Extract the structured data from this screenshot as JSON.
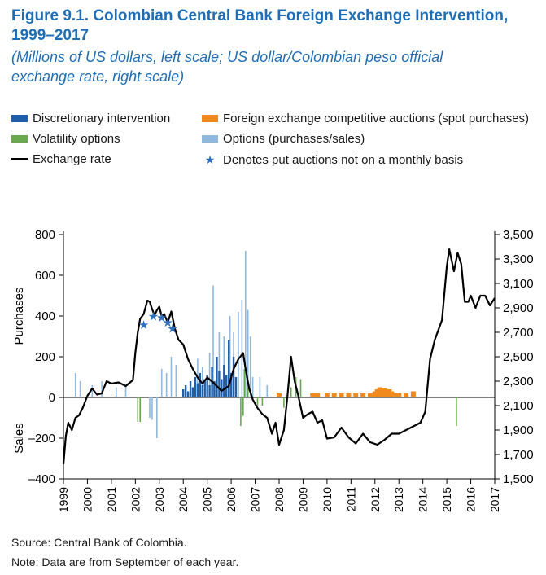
{
  "title_line1": "Figure 9.1. Colombian Central Bank Foreign Exchange Intervention,",
  "title_line2": "1999–2017",
  "subtitle_line1": "(Millions of US dollars, left scale; US dollar/Colombian peso official",
  "subtitle_line2": "exchange rate, right scale)",
  "legend": [
    {
      "label": "Discretionary intervention",
      "color": "#1f5fa8",
      "kind": "swatch"
    },
    {
      "label": "Foreign exchange competitive auctions (spot purchases)",
      "color": "#f08a1c",
      "kind": "swatch"
    },
    {
      "label": "Volatility options",
      "color": "#6aa84f",
      "kind": "swatch"
    },
    {
      "label": "Options (purchases/sales)",
      "color": "#8fb8de",
      "kind": "swatch"
    },
    {
      "label": "Exchange rate",
      "color": "#000000",
      "kind": "line"
    },
    {
      "label": "Denotes put auctions not on a monthly basis",
      "color": "#2e6fbe",
      "kind": "star"
    }
  ],
  "source": "Source: Central Bank of Colombia.",
  "note": "Note: Data are from September of each year.",
  "chart_data": {
    "type": "bar+line",
    "left_axis": {
      "label_top": "Purchases",
      "label_bottom": "Sales",
      "range": [
        -400,
        800
      ],
      "ticks": [
        -400,
        -200,
        0,
        200,
        400,
        600,
        800
      ],
      "tick_labels": [
        "–400",
        "–200",
        "0",
        "200",
        "400",
        "600",
        "800"
      ]
    },
    "right_axis": {
      "range": [
        1500,
        3500
      ],
      "ticks": [
        1500,
        1700,
        1900,
        2100,
        2300,
        2500,
        2700,
        2900,
        3100,
        3300,
        3500
      ],
      "tick_labels": [
        "1,500",
        "1,700",
        "1,900",
        "2,100",
        "2,300",
        "2,500",
        "2,700",
        "2,900",
        "3,100",
        "3,300",
        "3,500"
      ]
    },
    "x_axis": {
      "range": [
        1999,
        2017
      ],
      "ticks": [
        "1999",
        "2000",
        "2001",
        "2002",
        "2003",
        "2004",
        "2005",
        "2006",
        "2007",
        "2008",
        "2009",
        "2010",
        "2011",
        "2012",
        "2013",
        "2014",
        "2015",
        "2016",
        "2017"
      ]
    },
    "exchange_rate": {
      "x": [
        1999.0,
        1999.1,
        1999.2,
        1999.35,
        1999.5,
        1999.65,
        1999.8,
        2000.0,
        2000.2,
        2000.4,
        2000.6,
        2000.8,
        2001.0,
        2001.3,
        2001.6,
        2001.9,
        2002.0,
        2002.1,
        2002.2,
        2002.35,
        2002.5,
        2002.6,
        2002.7,
        2002.8,
        2002.9,
        2003.0,
        2003.1,
        2003.2,
        2003.35,
        2003.5,
        2003.65,
        2003.8,
        2004.0,
        2004.2,
        2004.4,
        2004.6,
        2004.8,
        2005.0,
        2005.3,
        2005.6,
        2005.9,
        2006.1,
        2006.3,
        2006.5,
        2006.6,
        2006.75,
        2006.9,
        2007.1,
        2007.3,
        2007.5,
        2007.7,
        2007.85,
        2008.0,
        2008.2,
        2008.35,
        2008.5,
        2008.65,
        2008.8,
        2009.0,
        2009.2,
        2009.4,
        2009.6,
        2009.8,
        2010.0,
        2010.3,
        2010.6,
        2010.9,
        2011.2,
        2011.5,
        2011.8,
        2012.1,
        2012.4,
        2012.7,
        2013.0,
        2013.3,
        2013.6,
        2013.9,
        2014.1,
        2014.3,
        2014.5,
        2014.65,
        2014.8,
        2015.0,
        2015.1,
        2015.2,
        2015.3,
        2015.45,
        2015.6,
        2015.75,
        2015.9,
        2016.0,
        2016.2,
        2016.4,
        2016.6,
        2016.8,
        2017.0
      ],
      "y": [
        1620,
        1850,
        1960,
        1900,
        2000,
        2020,
        2080,
        2180,
        2240,
        2190,
        2200,
        2300,
        2280,
        2290,
        2260,
        2310,
        2530,
        2700,
        2810,
        2850,
        2960,
        2950,
        2890,
        2840,
        2880,
        2910,
        2830,
        2850,
        2780,
        2870,
        2730,
        2640,
        2600,
        2480,
        2400,
        2330,
        2280,
        2330,
        2280,
        2220,
        2260,
        2400,
        2480,
        2530,
        2400,
        2240,
        2150,
        2080,
        2030,
        2000,
        1870,
        1960,
        1780,
        1900,
        2180,
        2500,
        2300,
        2180,
        2000,
        2030,
        2050,
        1960,
        1980,
        1830,
        1840,
        1920,
        1840,
        1790,
        1870,
        1800,
        1780,
        1820,
        1870,
        1870,
        1900,
        1930,
        1960,
        2050,
        2480,
        2640,
        2720,
        2800,
        3240,
        3380,
        3290,
        3200,
        3350,
        3260,
        2950,
        2950,
        3000,
        2900,
        3000,
        3000,
        2920,
        2980
      ]
    },
    "bars": {
      "discretionary": [
        [
          2004.0,
          40
        ],
        [
          2004.1,
          60
        ],
        [
          2004.2,
          30
        ],
        [
          2004.3,
          80
        ],
        [
          2004.4,
          50
        ],
        [
          2004.5,
          100
        ],
        [
          2004.6,
          70
        ],
        [
          2004.7,
          120
        ],
        [
          2004.8,
          60
        ],
        [
          2004.9,
          90
        ],
        [
          2005.0,
          110
        ],
        [
          2005.1,
          60
        ],
        [
          2005.2,
          150
        ],
        [
          2005.3,
          80
        ],
        [
          2005.4,
          200
        ],
        [
          2005.5,
          130
        ],
        [
          2005.6,
          90
        ],
        [
          2005.7,
          160
        ],
        [
          2005.8,
          110
        ],
        [
          2005.9,
          280
        ],
        [
          2006.0,
          120
        ],
        [
          2006.1,
          200
        ],
        [
          2006.2,
          100
        ]
      ],
      "auctions": [
        [
          2008.0,
          20
        ],
        [
          2009.4,
          20
        ],
        [
          2009.6,
          20
        ],
        [
          2010.0,
          20
        ],
        [
          2010.3,
          20
        ],
        [
          2010.6,
          20
        ],
        [
          2010.9,
          20
        ],
        [
          2011.2,
          20
        ],
        [
          2011.5,
          20
        ],
        [
          2011.8,
          20
        ],
        [
          2012.0,
          30
        ],
        [
          2012.1,
          40
        ],
        [
          2012.2,
          50
        ],
        [
          2012.3,
          40
        ],
        [
          2012.4,
          45
        ],
        [
          2012.5,
          35
        ],
        [
          2012.6,
          40
        ],
        [
          2012.7,
          30
        ],
        [
          2012.8,
          20
        ],
        [
          2012.9,
          20
        ],
        [
          2013.0,
          20
        ],
        [
          2013.3,
          20
        ],
        [
          2013.6,
          30
        ]
      ],
      "volatility": [
        [
          2002.1,
          -120
        ],
        [
          2002.2,
          -120
        ],
        [
          2006.4,
          -140
        ],
        [
          2006.5,
          -90
        ],
        [
          2006.55,
          140
        ],
        [
          2006.7,
          50
        ],
        [
          2007.1,
          -40
        ],
        [
          2007.3,
          -40
        ],
        [
          2008.2,
          -50
        ],
        [
          2008.3,
          -40
        ],
        [
          2008.5,
          50
        ],
        [
          2008.7,
          100
        ],
        [
          2008.9,
          90
        ],
        [
          2015.4,
          -140
        ]
      ],
      "options": [
        [
          1999.5,
          120
        ],
        [
          1999.7,
          80
        ],
        [
          2000.2,
          60
        ],
        [
          2000.6,
          80
        ],
        [
          2001.2,
          50
        ],
        [
          2001.6,
          60
        ],
        [
          2002.6,
          -100
        ],
        [
          2002.7,
          -110
        ],
        [
          2002.9,
          -200
        ],
        [
          2003.1,
          140
        ],
        [
          2003.3,
          120
        ],
        [
          2003.5,
          200
        ],
        [
          2003.7,
          160
        ],
        [
          2004.6,
          190
        ],
        [
          2004.8,
          150
        ],
        [
          2005.1,
          220
        ],
        [
          2005.25,
          550
        ],
        [
          2005.5,
          320
        ],
        [
          2005.7,
          300
        ],
        [
          2005.95,
          400
        ],
        [
          2006.1,
          320
        ],
        [
          2006.3,
          420
        ],
        [
          2006.45,
          480
        ],
        [
          2006.6,
          720
        ],
        [
          2006.7,
          430
        ],
        [
          2006.8,
          300
        ],
        [
          2006.9,
          100
        ],
        [
          2007.2,
          100
        ],
        [
          2007.5,
          60
        ]
      ]
    },
    "put_auction_stars": [
      [
        2002.35,
        2760
      ],
      [
        2002.75,
        2830
      ],
      [
        2003.1,
        2820
      ],
      [
        2003.35,
        2780
      ],
      [
        2003.55,
        2730
      ]
    ]
  }
}
